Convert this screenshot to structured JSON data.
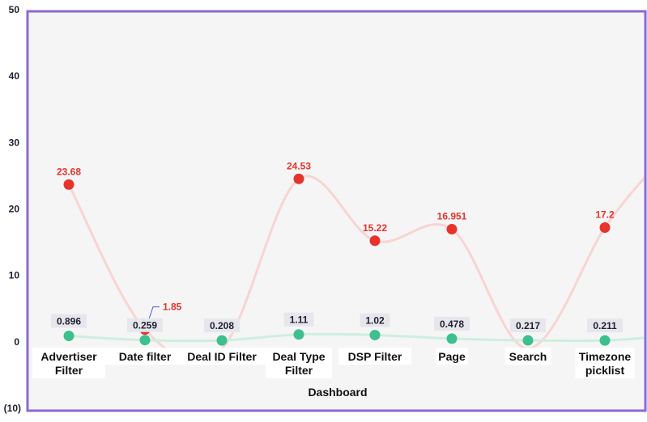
{
  "chart_data": {
    "type": "line",
    "categories": [
      [
        "Advertiser",
        "Filter"
      ],
      [
        "Date filter"
      ],
      [
        "Deal ID Filter"
      ],
      [
        "Deal Type",
        "Filter"
      ],
      [
        "DSP Filter"
      ],
      [
        "Page"
      ],
      [
        "Search"
      ],
      [
        "Timezone",
        "picklist"
      ]
    ],
    "series": [
      {
        "values": [
          23.68,
          1.85,
          null,
          24.53,
          15.22,
          16.951,
          null,
          17.2
        ],
        "labels": [
          "23.68",
          "1.85",
          "",
          "24.53",
          "15.22",
          "16.951",
          "",
          "17.2"
        ],
        "color": "#e8322c",
        "line_color": "#f8d4d2"
      },
      {
        "values": [
          0.896,
          0.259,
          0.208,
          1.11,
          1.02,
          0.478,
          0.217,
          0.211
        ],
        "labels": [
          "0.896",
          "0.259",
          "0.208",
          "1.11",
          "1.02",
          "0.478",
          "0.217",
          "0.211"
        ],
        "color": "#3dbf8e",
        "line_color": "#cdeee0"
      }
    ],
    "xlabel": "Dashboard",
    "ylabel": "",
    "ylim": [
      -10,
      50
    ],
    "yticks": [
      50,
      40,
      30,
      20,
      10,
      0
    ],
    "yticks_neg": [
      "(10)"
    ],
    "frame_color": "#8a6ad6",
    "plot_bg": "#f5f5f5"
  }
}
